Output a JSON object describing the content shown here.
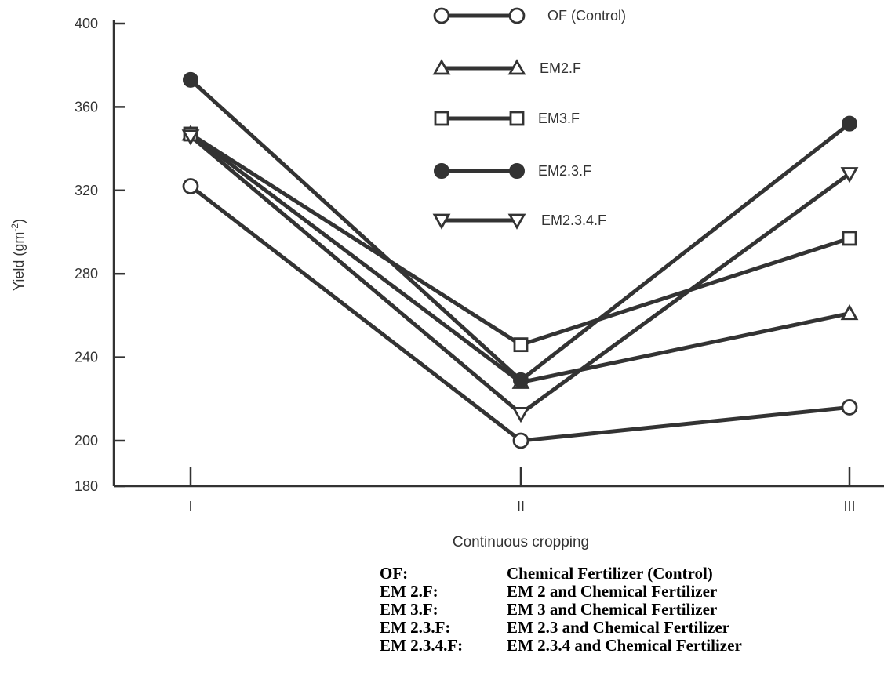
{
  "chart_data": {
    "type": "line",
    "title": "",
    "xlabel": "Continuous cropping",
    "ylabel": "Yield (gm⁻²)",
    "categories": [
      "I",
      "II",
      "III"
    ],
    "y_ticks": [
      400,
      360,
      320,
      280,
      240,
      200,
      180
    ],
    "ylim": [
      180,
      400
    ],
    "grid": false,
    "legend_position": "top-center",
    "line_color": "#333333",
    "series": [
      {
        "name": "OF (Control)",
        "marker": "circle-open",
        "values": [
          322,
          200,
          216
        ]
      },
      {
        "name": "EM2.F",
        "marker": "triangle-up-open",
        "values": [
          347,
          228,
          261
        ]
      },
      {
        "name": "EM3.F",
        "marker": "square-open",
        "values": [
          347,
          246,
          297
        ]
      },
      {
        "name": "EM2.3.F",
        "marker": "circle-filled",
        "values": [
          373,
          229,
          352
        ]
      },
      {
        "name": "EM2.3.4.F",
        "marker": "triangle-down-open",
        "values": [
          346,
          213,
          328
        ]
      }
    ]
  },
  "key_table": [
    {
      "abbr": "OF:",
      "desc": "Chemical Fertilizer (Control)"
    },
    {
      "abbr": "EM 2.F:",
      "desc": "EM 2 and Chemical Fertilizer"
    },
    {
      "abbr": "EM 3.F:",
      "desc": "EM 3 and Chemical Fertilizer"
    },
    {
      "abbr": "EM 2.3.F:",
      "desc": "EM 2.3 and Chemical Fertilizer"
    },
    {
      "abbr": "EM 2.3.4.F:",
      "desc": "EM 2.3.4 and Chemical Fertilizer"
    }
  ]
}
